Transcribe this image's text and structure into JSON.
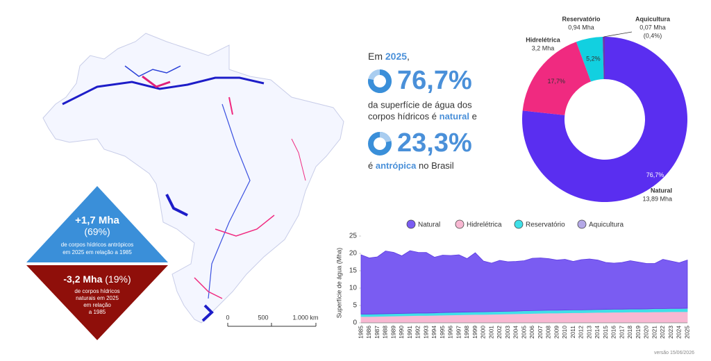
{
  "headline": {
    "intro": [
      "Em",
      "2025",
      ","
    ],
    "natural_pct": "76,7%",
    "natural_text_1": "da superfície de água dos",
    "natural_text_2": [
      "corpos hídricos é",
      "natural",
      "e"
    ],
    "antropic_pct": "23,3%",
    "antropic_text": [
      "é",
      "antrópica",
      "no Brasil"
    ]
  },
  "up_triangle": {
    "title": "+1,7 Mha",
    "pct": "(69%)",
    "lines": [
      "de corpos hídricos antrópicos",
      "em 2025 em relação a 1985"
    ]
  },
  "down_triangle": {
    "title": "-3,2 Mha",
    "pct": "(19%)",
    "lines": [
      "de corpos hídricos",
      "naturais em 2025",
      "em relação",
      "a 1985"
    ]
  },
  "map_scale": [
    "0",
    "500",
    "1.000 km"
  ],
  "version": "versão 15/06/2026",
  "chart_data": [
    {
      "type": "pie",
      "categories": [
        "Natural",
        "Hidrelétrica",
        "Reservatório",
        "Aquicultura"
      ],
      "values": [
        76.7,
        17.7,
        5.2,
        0.4
      ],
      "value_labels": [
        "76,7%",
        "17,7%",
        "5,2%",
        "(0,4%)"
      ],
      "area_labels": [
        "13,89 Mha",
        "3,2 Mha",
        "0,94 Mha",
        "0,07 Mha"
      ],
      "colors": [
        "#5a2ef0",
        "#f02a80",
        "#12d0e0",
        "#6a3aa8"
      ],
      "hole": true
    },
    {
      "type": "area",
      "ylabel": "Superfície de água (Mha)",
      "x": [
        1985,
        1986,
        1987,
        1988,
        1989,
        1990,
        1991,
        1992,
        1993,
        1994,
        1995,
        1996,
        1997,
        1998,
        1999,
        2000,
        2001,
        2002,
        2003,
        2004,
        2005,
        2006,
        2007,
        2008,
        2009,
        2010,
        2011,
        2012,
        2013,
        2014,
        2015,
        2016,
        2017,
        2018,
        2019,
        2020,
        2021,
        2022,
        2023,
        2024,
        2025
      ],
      "xlim": [
        1985,
        2025
      ],
      "ylim": [
        0,
        25
      ],
      "yticks": [
        0,
        5,
        10,
        15,
        20,
        25
      ],
      "stacked": true,
      "series": [
        {
          "name": "Natural",
          "color": "#7a5cf2",
          "values": [
            17.09,
            16.19,
            16.44,
            18.09,
            17.64,
            16.59,
            18.04,
            17.49,
            17.45,
            16.04,
            16.54,
            16.39,
            16.54,
            15.39,
            17.04,
            14.63,
            13.98,
            14.73,
            14.28,
            14.33,
            14.43,
            15.08,
            15.13,
            14.88,
            14.48,
            14.62,
            13.97,
            14.47,
            14.62,
            14.27,
            13.51,
            13.26,
            13.46,
            13.91,
            13.51,
            13.1,
            13.0,
            14.2,
            13.64,
            13.14,
            13.89
          ]
        },
        {
          "name": "Hidrelétrica",
          "color": "#f8b8d2",
          "values": [
            1.8,
            1.8,
            1.85,
            1.9,
            1.95,
            2.0,
            2.05,
            2.1,
            2.1,
            2.15,
            2.2,
            2.25,
            2.3,
            2.35,
            2.4,
            2.4,
            2.45,
            2.5,
            2.55,
            2.6,
            2.65,
            2.7,
            2.75,
            2.8,
            2.8,
            2.85,
            2.9,
            2.9,
            2.95,
            3.0,
            3.0,
            3.05,
            3.05,
            3.1,
            3.1,
            3.1,
            3.15,
            3.15,
            3.2,
            3.2,
            3.2
          ]
        },
        {
          "name": "Reservatório",
          "color": "#3fe0e8",
          "values": [
            0.7,
            0.7,
            0.7,
            0.7,
            0.7,
            0.7,
            0.7,
            0.7,
            0.7,
            0.7,
            0.75,
            0.75,
            0.75,
            0.75,
            0.75,
            0.75,
            0.75,
            0.75,
            0.75,
            0.75,
            0.8,
            0.8,
            0.8,
            0.8,
            0.8,
            0.8,
            0.8,
            0.8,
            0.8,
            0.8,
            0.85,
            0.85,
            0.85,
            0.85,
            0.85,
            0.85,
            0.9,
            0.9,
            0.9,
            0.9,
            0.94
          ]
        },
        {
          "name": "Aquicultura",
          "color": "#b4a8e6",
          "values": [
            0.01,
            0.01,
            0.01,
            0.01,
            0.01,
            0.01,
            0.01,
            0.01,
            0.01,
            0.01,
            0.01,
            0.01,
            0.01,
            0.01,
            0.01,
            0.02,
            0.02,
            0.02,
            0.02,
            0.02,
            0.02,
            0.02,
            0.02,
            0.02,
            0.02,
            0.03,
            0.03,
            0.03,
            0.03,
            0.03,
            0.04,
            0.04,
            0.04,
            0.04,
            0.04,
            0.05,
            0.05,
            0.05,
            0.06,
            0.06,
            0.07
          ]
        }
      ]
    }
  ]
}
